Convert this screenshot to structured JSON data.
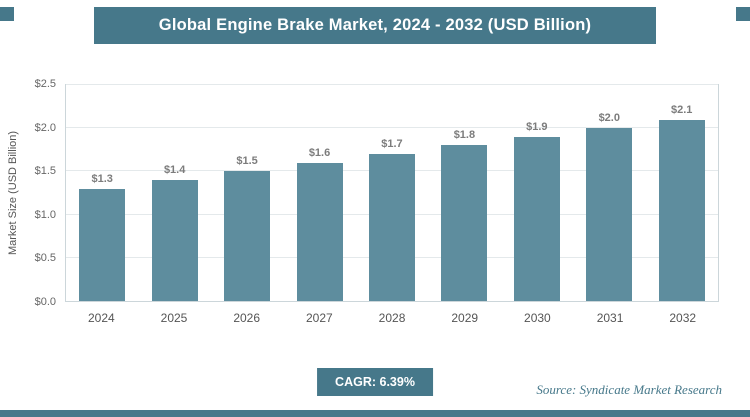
{
  "colors": {
    "accent": "#46788a",
    "bar": "#5e8d9e"
  },
  "chart_data": {
    "type": "bar",
    "title": "Global Engine Brake Market, 2024 - 2032 (USD Billion)",
    "categories": [
      "2024",
      "2025",
      "2026",
      "2027",
      "2028",
      "2029",
      "2030",
      "2031",
      "2032"
    ],
    "values": [
      1.3,
      1.4,
      1.5,
      1.6,
      1.7,
      1.8,
      1.9,
      2.0,
      2.1
    ],
    "labels": [
      "$1.3",
      "$1.4",
      "$1.5",
      "$1.6",
      "$1.7",
      "$1.8",
      "$1.9",
      "$2.0",
      "$2.1"
    ],
    "xlabel": "",
    "ylabel": "Market Size (USD Billion)",
    "ylim": [
      0,
      2.5
    ],
    "yticks": [
      "$0.0",
      "$0.5",
      "$1.0",
      "$1.5",
      "$2.0",
      "$2.5"
    ],
    "grid": true,
    "legend": "none"
  },
  "footer": {
    "cagr_label": "CAGR: 6.39%",
    "source": "Source: Syndicate Market Research"
  }
}
